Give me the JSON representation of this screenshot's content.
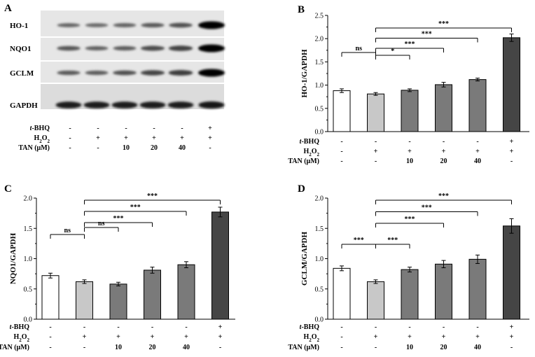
{
  "panels": {
    "A": {
      "letter": "A",
      "bands": [
        {
          "protein": "HO-1",
          "intensities": [
            0.35,
            0.32,
            0.36,
            0.42,
            0.48,
            1.0
          ]
        },
        {
          "protein": "NQO1",
          "intensities": [
            0.45,
            0.38,
            0.4,
            0.52,
            0.58,
            1.0
          ]
        },
        {
          "protein": "GCLM",
          "intensities": [
            0.42,
            0.4,
            0.48,
            0.56,
            0.62,
            1.0
          ]
        },
        {
          "protein": "GAPDH",
          "intensities": [
            0.85,
            0.85,
            0.85,
            0.85,
            0.85,
            0.9
          ]
        }
      ]
    }
  },
  "conditions": {
    "rows": [
      {
        "label": "t-BHQ",
        "values": [
          "-",
          "-",
          "-",
          "-",
          "-",
          "+"
        ]
      },
      {
        "label": "H2O2",
        "values": [
          "-",
          "+",
          "+",
          "+",
          "+",
          "+"
        ]
      },
      {
        "label": "TAN (μM)",
        "values": [
          "-",
          "-",
          "10",
          "20",
          "40",
          "-"
        ]
      }
    ]
  },
  "colors": {
    "bars": [
      "#ffffff",
      "#c8c8c8",
      "#7a7a7a",
      "#7a7a7a",
      "#7a7a7a",
      "#454545"
    ]
  },
  "chart_data": [
    {
      "panel": "B",
      "type": "bar",
      "ylabel": "HO-1/GAPDH",
      "ylim": [
        0,
        2.5
      ],
      "yticks": [
        0.0,
        0.5,
        1.0,
        1.5,
        2.0,
        2.5
      ],
      "values": [
        0.88,
        0.81,
        0.89,
        1.01,
        1.12,
        2.02
      ],
      "errors": [
        0.04,
        0.03,
        0.03,
        0.05,
        0.03,
        0.08
      ],
      "significance": [
        {
          "from": 0,
          "to": 1,
          "label": "ns"
        },
        {
          "from": 1,
          "to": 2,
          "label": "*"
        },
        {
          "from": 1,
          "to": 3,
          "label": "***"
        },
        {
          "from": 1,
          "to": 4,
          "label": "***"
        },
        {
          "from": 1,
          "to": 5,
          "label": "***"
        }
      ]
    },
    {
      "panel": "C",
      "type": "bar",
      "ylabel": "NQO1/GAPDH",
      "ylim": [
        0,
        2.0
      ],
      "yticks": [
        0.0,
        0.5,
        1.0,
        1.5,
        2.0
      ],
      "values": [
        0.72,
        0.62,
        0.58,
        0.81,
        0.9,
        1.77
      ],
      "errors": [
        0.04,
        0.03,
        0.03,
        0.05,
        0.05,
        0.08
      ],
      "significance": [
        {
          "from": 0,
          "to": 1,
          "label": "ns"
        },
        {
          "from": 1,
          "to": 2,
          "label": "ns"
        },
        {
          "from": 1,
          "to": 3,
          "label": "***"
        },
        {
          "from": 1,
          "to": 4,
          "label": "***"
        },
        {
          "from": 1,
          "to": 5,
          "label": "***"
        }
      ]
    },
    {
      "panel": "D",
      "type": "bar",
      "ylabel": "GCLM/GAPDH",
      "ylim": [
        0,
        2.0
      ],
      "yticks": [
        0.0,
        0.5,
        1.0,
        1.5,
        2.0
      ],
      "values": [
        0.84,
        0.62,
        0.82,
        0.91,
        0.99,
        1.54
      ],
      "errors": [
        0.04,
        0.03,
        0.04,
        0.06,
        0.07,
        0.12
      ],
      "significance": [
        {
          "from": 0,
          "to": 1,
          "label": "***"
        },
        {
          "from": 1,
          "to": 2,
          "label": "***"
        },
        {
          "from": 1,
          "to": 3,
          "label": "***"
        },
        {
          "from": 1,
          "to": 4,
          "label": "***"
        },
        {
          "from": 1,
          "to": 5,
          "label": "***"
        }
      ]
    }
  ]
}
